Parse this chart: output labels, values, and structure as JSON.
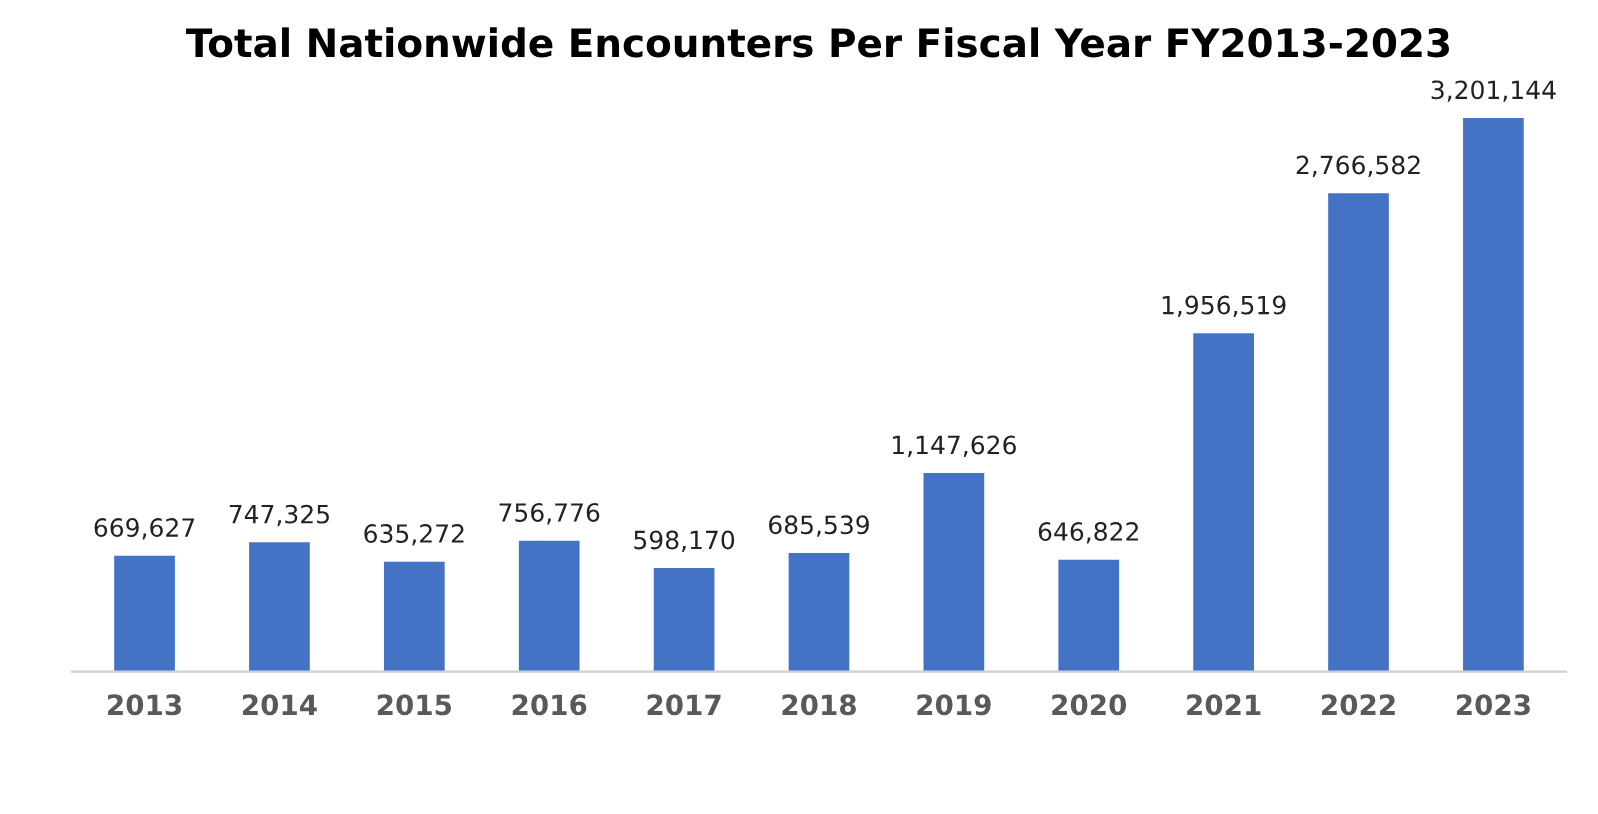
{
  "chart_data": {
    "type": "bar",
    "title": "Total Nationwide Encounters Per Fiscal Year FY2013-2023",
    "categories": [
      "2013",
      "2014",
      "2015",
      "2016",
      "2017",
      "2018",
      "2019",
      "2020",
      "2021",
      "2022",
      "2023"
    ],
    "values": [
      669627,
      747325,
      635272,
      756776,
      598170,
      685539,
      1147626,
      646822,
      1956519,
      2766582,
      3201144
    ],
    "value_labels": [
      "669,627",
      "747,325",
      "635,272",
      "756,776",
      "598,170",
      "685,539",
      "1,147,626",
      "646,822",
      "1,956,519",
      "2,766,582",
      "3,201,144"
    ],
    "color": "#4472c4",
    "grid": false,
    "legend": false
  }
}
